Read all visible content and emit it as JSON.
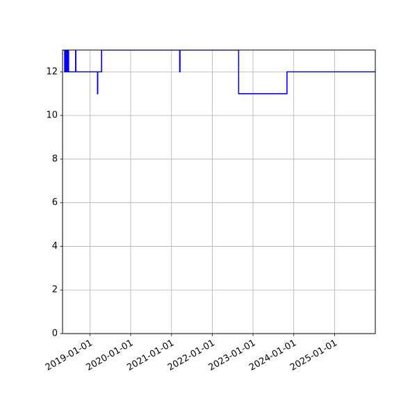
{
  "chart_data": {
    "type": "line",
    "title": "",
    "xlabel": "",
    "ylabel": "",
    "xlim": [
      "2018-05-01",
      "2025-12-31"
    ],
    "ylim": [
      0,
      13
    ],
    "grid": true,
    "x_ticks": [
      "2019-01-01",
      "2020-01-01",
      "2021-01-01",
      "2022-01-01",
      "2023-01-01",
      "2024-01-01",
      "2025-01-01"
    ],
    "y_ticks": [
      0,
      2,
      4,
      6,
      8,
      10,
      12
    ],
    "line_color": "#0000ff",
    "series": [
      {
        "x": [
          "2018-05-01",
          "2018-05-20",
          "2018-05-20",
          "2018-05-21",
          "2018-05-21",
          "2018-05-27",
          "2018-05-27",
          "2018-06-04",
          "2018-06-04",
          "2018-06-10",
          "2018-06-10",
          "2018-06-18",
          "2018-06-18",
          "2018-06-24",
          "2018-06-24",
          "2018-08-26",
          "2018-08-26",
          "2018-08-28",
          "2018-08-28",
          "2019-03-10",
          "2019-03-10",
          "2019-03-12",
          "2019-03-12",
          "2019-04-15",
          "2019-04-15",
          "2019-04-25",
          "2019-04-25",
          "2021-03-15",
          "2021-03-15",
          "2021-03-18",
          "2021-03-18",
          "2022-08-25",
          "2022-08-25",
          "2023-11-01",
          "2023-11-01",
          "2025-12-31"
        ],
        "y": [
          13,
          13,
          12,
          12,
          13,
          13,
          12,
          12,
          13,
          13,
          12,
          12,
          13,
          13,
          12,
          12,
          13,
          13,
          12,
          12,
          11,
          11,
          12,
          12,
          13,
          13,
          13,
          13,
          12,
          12,
          13,
          13,
          11,
          11,
          12,
          12
        ]
      }
    ]
  }
}
